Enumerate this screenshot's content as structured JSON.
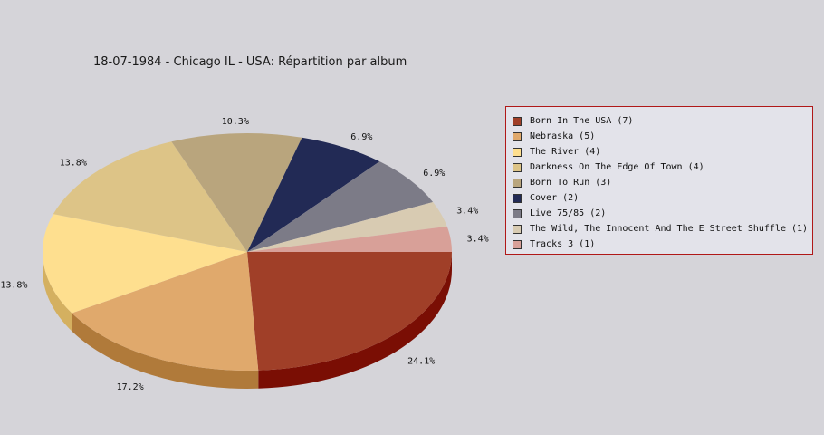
{
  "chart_data": {
    "type": "pie",
    "title": "18-07-1984 - Chicago IL - USA:  Répartition par album",
    "slices": [
      {
        "label": "Born In The USA (7)",
        "value": 7,
        "percent_label": "24.1%",
        "color": "#a03f28",
        "side_color": "#7a0e04"
      },
      {
        "label": "Nebraska (5)",
        "value": 5,
        "percent_label": "17.2%",
        "color": "#e0a96c",
        "side_color": "#b07a3a"
      },
      {
        "label": "The River (4)",
        "value": 4,
        "percent_label": "13.8%",
        "color": "#fedf8f",
        "side_color": "#d4b060"
      },
      {
        "label": "Darkness On The Edge Of Town (4)",
        "value": 4,
        "percent_label": "13.8%",
        "color": "#ddc487",
        "side_color": "#b09a60"
      },
      {
        "label": "Born To Run (3)",
        "value": 3,
        "percent_label": "10.3%",
        "color": "#b9a57d",
        "side_color": "#8f7d5a"
      },
      {
        "label": "Cover (2)",
        "value": 2,
        "percent_label": "6.9%",
        "color": "#222a55",
        "side_color": "#141a38"
      },
      {
        "label": "Live 75/85 (2)",
        "value": 2,
        "percent_label": "6.9%",
        "color": "#7c7b87",
        "side_color": "#5a5966"
      },
      {
        "label": "The Wild, The Innocent And The E Street Shuffle (1)",
        "value": 1,
        "percent_label": "3.4%",
        "color": "#d8cbb2",
        "side_color": "#b0a58e"
      },
      {
        "label": "Tracks 3 (1)",
        "value": 1,
        "percent_label": "3.4%",
        "color": "#d8a098",
        "side_color": "#b07870"
      }
    ],
    "legend_position": "right"
  }
}
